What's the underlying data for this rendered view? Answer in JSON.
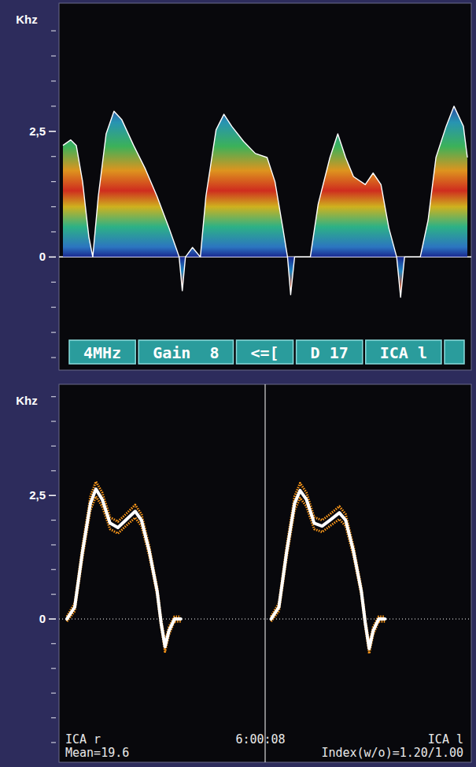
{
  "chart_data": [
    {
      "type": "area",
      "y_label": "Khz",
      "xlim": [
        0,
        525
      ],
      "ylim": [
        -2.25,
        5.05
      ],
      "yticks": [
        {
          "value": 2.5,
          "label": "2,5"
        },
        0
      ],
      "minor_yticks": [
        -2,
        -1.5,
        -1,
        -0.5,
        0.5,
        1,
        1.5,
        2,
        3,
        3.5,
        4,
        4.5
      ],
      "tick_labels": "y",
      "series": [
        {
          "color": "#ffffff",
          "x": [
            5,
            15,
            22,
            30,
            38,
            43,
            50,
            60,
            70,
            80,
            95,
            110,
            125,
            140,
            150,
            153,
            157,
            161,
            170,
            180,
            187,
            200,
            210,
            220,
            235,
            250,
            265,
            275,
            285,
            291,
            295,
            300,
            320,
            330,
            345,
            355,
            365,
            375,
            390,
            400,
            410,
            420,
            430,
            435,
            440,
            460,
            470,
            480,
            493,
            503,
            515,
            520
          ],
          "values": [
            2.22,
            2.33,
            2.22,
            1.5,
            0.4,
            0,
            1.2,
            2.45,
            2.9,
            2.73,
            2.22,
            1.75,
            1.2,
            0.58,
            0.14,
            0,
            -0.67,
            0,
            0.19,
            0,
            1.2,
            2.53,
            2.84,
            2.6,
            2.3,
            2.06,
            1.98,
            1.5,
            0.58,
            0,
            -0.75,
            0,
            0,
            1.05,
            1.98,
            2.45,
            1.98,
            1.6,
            1.44,
            1.67,
            1.44,
            0.58,
            0,
            -0.8,
            0,
            0,
            0.73,
            1.98,
            2.6,
            3.0,
            2.6,
            1.98
          ]
        }
      ],
      "annotations": [
        "4MHz",
        "Gain  8",
        "<=[",
        "D 17",
        "ICA l"
      ]
    },
    {
      "type": "line",
      "y_label": "Khz",
      "xlim": [
        0,
        525
      ],
      "ylim": [
        -2.9,
        4.75
      ],
      "yticks": [
        {
          "value": 2.5,
          "label": "2,5"
        },
        0
      ],
      "minor_yticks": [
        -2.5,
        -2,
        -1.5,
        -1,
        -0.5,
        0.5,
        1,
        1.5,
        2,
        3,
        3.5,
        4,
        4.5
      ],
      "tick_labels": "y",
      "series": [
        {
          "name": "ICA r",
          "color": "#ffffff",
          "x": [
            10,
            20,
            30,
            40,
            47,
            55,
            65,
            75,
            85,
            97,
            105,
            115,
            125,
            130,
            135,
            140,
            147,
            155
          ],
          "values": [
            0,
            0.24,
            1.37,
            2.34,
            2.63,
            2.42,
            1.94,
            1.85,
            2.0,
            2.18,
            2.0,
            1.37,
            0.56,
            -0.08,
            -0.56,
            -0.24,
            0,
            0
          ],
          "error": [
            0.05,
            0.08,
            0.12,
            0.14,
            0.15,
            0.14,
            0.12,
            0.12,
            0.12,
            0.13,
            0.12,
            0.1,
            0.08,
            0.08,
            0.1,
            0.08,
            0.05,
            0.05
          ]
        },
        {
          "name": "ICA l",
          "color": "#ffffff",
          "x": [
            270,
            280,
            290,
            300,
            307,
            315,
            325,
            335,
            345,
            357,
            365,
            375,
            385,
            390,
            395,
            400,
            407,
            415
          ],
          "values": [
            0,
            0.24,
            1.37,
            2.34,
            2.6,
            2.42,
            1.94,
            1.88,
            2.0,
            2.15,
            2.0,
            1.37,
            0.56,
            -0.08,
            -0.6,
            -0.24,
            0,
            0
          ],
          "error": [
            0.05,
            0.08,
            0.12,
            0.14,
            0.15,
            0.14,
            0.12,
            0.12,
            0.12,
            0.13,
            0.12,
            0.1,
            0.08,
            0.08,
            0.1,
            0.08,
            0.05,
            0.05
          ]
        }
      ],
      "annotations": [
        "6:00:08",
        "Mean=19.6",
        "Index(w/o)=1.20/1.00"
      ]
    }
  ]
}
